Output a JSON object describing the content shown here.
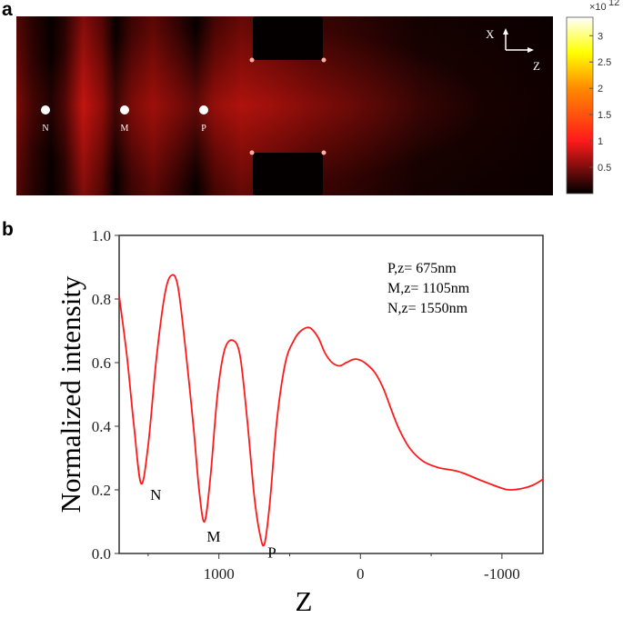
{
  "chart_data": [
    {
      "panel": "a",
      "type": "heatmap",
      "colorbar": {
        "exponent_label": "×10",
        "exponent": "12",
        "ticks": [
          0.5,
          1,
          1.5,
          2,
          2.5,
          3
        ],
        "tick_labels": [
          "0.5",
          "1",
          "1.5",
          "2",
          "2.5",
          "3"
        ],
        "range": [
          0,
          3.35
        ],
        "colormap": [
          "#000000",
          "#ff1a1a",
          "#ff8c00",
          "#ffff00",
          "#ffffff"
        ]
      },
      "axes_indicator": {
        "x": "X",
        "z": "Z"
      },
      "markers": [
        {
          "label": "N",
          "color": "#ffffff"
        },
        {
          "label": "M",
          "color": "#ffffff"
        },
        {
          "label": "P",
          "color": "#ffffff"
        }
      ]
    },
    {
      "panel": "b",
      "type": "line",
      "xlabel": "Z",
      "ylabel": "Normalized intensity",
      "xlim": [
        1705,
        -1290
      ],
      "ylim": [
        0,
        1
      ],
      "x_ticks": [
        1000,
        0,
        -1000
      ],
      "x_tick_labels": [
        "1000",
        "0",
        "-1000"
      ],
      "x_minor_ticks": [
        1500,
        500,
        -500
      ],
      "y_ticks": [
        0,
        0.2,
        0.4,
        0.6,
        0.8,
        1.0
      ],
      "y_tick_labels": [
        "0.0",
        "0.2",
        "0.4",
        "0.6",
        "0.8",
        "1.0"
      ],
      "grid": false,
      "series": [
        {
          "color": "#ff1a1a",
          "x": [
            1705,
            1650,
            1600,
            1550,
            1500,
            1440,
            1380,
            1333,
            1290,
            1240,
            1180,
            1140,
            1102,
            1060,
            1010,
            960,
            901,
            850,
            800,
            750,
            710,
            678,
            640,
            590,
            530,
            470,
            420,
            360,
            300,
            250,
            200,
            148,
            100,
            50,
            17,
            -30,
            -100,
            -161,
            -220,
            -274,
            -350,
            -443,
            -550,
            -697,
            -850,
            -1000,
            -1064,
            -1150,
            -1220,
            -1290
          ],
          "y": [
            0.81,
            0.62,
            0.4,
            0.22,
            0.34,
            0.62,
            0.82,
            0.875,
            0.84,
            0.66,
            0.4,
            0.2,
            0.1,
            0.24,
            0.5,
            0.64,
            0.67,
            0.62,
            0.42,
            0.18,
            0.06,
            0.03,
            0.16,
            0.42,
            0.6,
            0.67,
            0.7,
            0.71,
            0.68,
            0.63,
            0.6,
            0.59,
            0.6,
            0.61,
            0.61,
            0.6,
            0.57,
            0.52,
            0.45,
            0.39,
            0.33,
            0.29,
            0.27,
            0.257,
            0.23,
            0.205,
            0.2,
            0.205,
            0.215,
            0.233
          ]
        }
      ],
      "annotations": [
        {
          "label": "N",
          "x": 1550,
          "y": 0.22
        },
        {
          "label": "M",
          "x": 1105,
          "y": 0.1
        },
        {
          "label": "P",
          "x": 675,
          "y": 0.03
        }
      ],
      "legend_text": [
        "P,z= 675nm",
        "M,z= 1105nm",
        "N,z= 1550nm"
      ]
    }
  ],
  "labels": {
    "panel_a": "a",
    "panel_b": "b"
  }
}
